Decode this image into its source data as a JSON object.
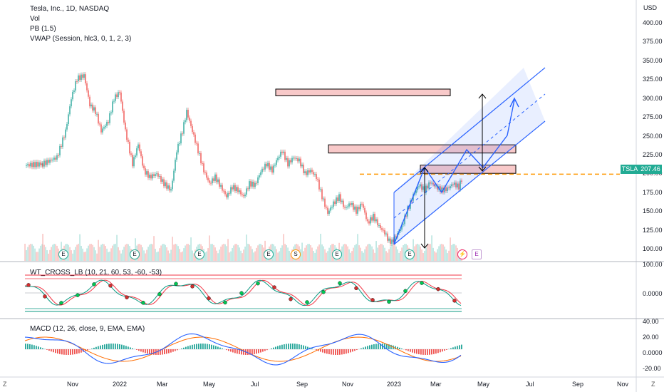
{
  "legend": {
    "symbol": "Tesla, Inc., 1D, NASDAQ",
    "vol": "Vol",
    "pb": "PB (1.5)",
    "vwap": "VWAP (Session, hlc3, 0, 1, 2, 3)"
  },
  "ticker": {
    "symbol": "TSLA",
    "last_price": "207.46"
  },
  "price_axis": {
    "currency": "USD",
    "labels": [
      "400.00",
      "375.00",
      "350.00",
      "325.00",
      "300.00",
      "275.00",
      "250.00",
      "225.00",
      "200.00",
      "175.00",
      "150.00",
      "125.00",
      "100.00"
    ]
  },
  "wt_pane": {
    "title": "WT_CROSS_LB (10, 21, 60, 53, -60, -53)",
    "labels": [
      "100.00",
      "0.0000"
    ]
  },
  "macd_pane": {
    "title": "MACD (12, 26, close, 9, EMA, EMA)",
    "labels": [
      "40.00",
      "20.00",
      "0.0000",
      "-20.00"
    ]
  },
  "time_axis": [
    "Nov",
    "2022",
    "Mar",
    "May",
    "Jul",
    "Sep",
    "Nov",
    "2023",
    "Mar",
    "May",
    "Jul",
    "Sep",
    "Nov"
  ],
  "corners": {
    "left": "Z",
    "right": "Z"
  },
  "markers": {
    "earnings": [
      "E",
      "E",
      "E",
      "E",
      "E",
      "E"
    ],
    "dividend": "S",
    "split": "E"
  },
  "colors": {
    "up": "#26a69a",
    "down": "#ef5350",
    "channel": "#2962ff",
    "zone_fill": "#f8c9c9",
    "ref_line": "#ff9800",
    "badge": "#22ab94",
    "wt_line_green": "#089981",
    "wt_line_red": "#f23645",
    "macd_blue": "#2962ff",
    "macd_orange": "#ff6d00"
  },
  "annotations": {
    "resistance_zones": [
      {
        "low": 305,
        "high": 312
      },
      {
        "low": 229,
        "high": 238
      },
      {
        "low": 202,
        "high": 211
      }
    ],
    "reference_price": 200,
    "projection_target": 305
  }
}
